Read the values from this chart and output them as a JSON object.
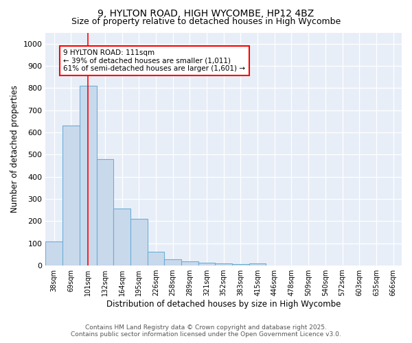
{
  "title1": "9, HYLTON ROAD, HIGH WYCOMBE, HP12 4BZ",
  "title2": "Size of property relative to detached houses in High Wycombe",
  "xlabel": "Distribution of detached houses by size in High Wycombe",
  "ylabel": "Number of detached properties",
  "categories": [
    "38sqm",
    "69sqm",
    "101sqm",
    "132sqm",
    "164sqm",
    "195sqm",
    "226sqm",
    "258sqm",
    "289sqm",
    "321sqm",
    "352sqm",
    "383sqm",
    "415sqm",
    "446sqm",
    "478sqm",
    "509sqm",
    "540sqm",
    "572sqm",
    "603sqm",
    "635sqm",
    "666sqm"
  ],
  "values": [
    110,
    632,
    810,
    480,
    257,
    212,
    62,
    27,
    20,
    14,
    10,
    5,
    10,
    0,
    0,
    0,
    0,
    0,
    0,
    0,
    0
  ],
  "bar_color": "#c9d9ec",
  "bar_edge_color": "#6baed6",
  "background_color": "#e8eef8",
  "red_line_x": 2.0,
  "annotation_box_text": "9 HYLTON ROAD: 111sqm\n← 39% of detached houses are smaller (1,011)\n61% of semi-detached houses are larger (1,601) →",
  "ylim": [
    0,
    1050
  ],
  "yticks": [
    0,
    100,
    200,
    300,
    400,
    500,
    600,
    700,
    800,
    900,
    1000
  ],
  "footnote1": "Contains HM Land Registry data © Crown copyright and database right 2025.",
  "footnote2": "Contains public sector information licensed under the Open Government Licence v3.0."
}
